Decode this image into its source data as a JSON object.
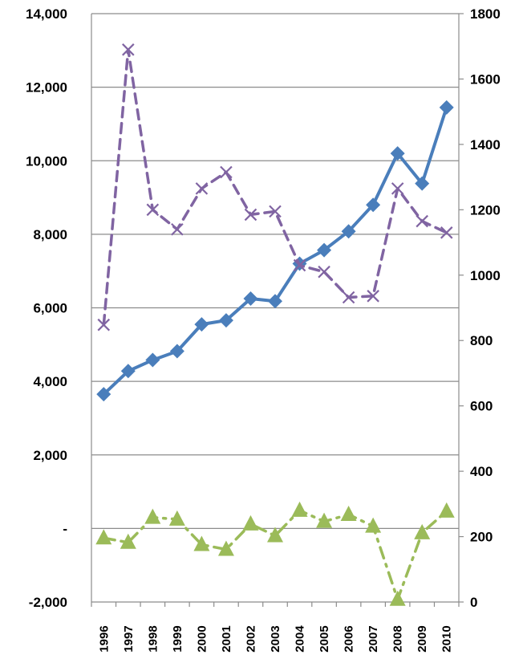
{
  "chart_data": {
    "type": "line",
    "title": "",
    "xlabel": "",
    "ylabel": "",
    "x": [
      "1996",
      "1997",
      "1998",
      "1999",
      "2000",
      "2001",
      "2002",
      "2003",
      "2004",
      "2005",
      "2006",
      "2007",
      "2008",
      "2009",
      "2010"
    ],
    "left_axis": {
      "ylim": [
        -2000,
        14000
      ],
      "ticks": [
        -2000,
        0,
        2000,
        4000,
        6000,
        8000,
        10000,
        12000,
        14000
      ],
      "tick_labels": [
        "-2,000",
        "-",
        "2,000",
        "4,000",
        "6,000",
        "8,000",
        "10,000",
        "12,000",
        "14,000"
      ]
    },
    "right_axis": {
      "ylim": [
        0,
        1800
      ],
      "ticks": [
        0,
        200,
        400,
        600,
        800,
        1000,
        1200,
        1400,
        1600,
        1800
      ],
      "tick_labels": [
        "0",
        "200",
        "400",
        "600",
        "800",
        "1000",
        "1200",
        "1400",
        "1600",
        "1800"
      ]
    },
    "grid": true,
    "legend": "none",
    "series": [
      {
        "axis": "left",
        "color": "#4a7ebb",
        "marker": "diamond",
        "line_style": "solid",
        "values": [
          3650,
          4280,
          4580,
          4820,
          5550,
          5660,
          6250,
          6180,
          7200,
          7570,
          8080,
          8800,
          10200,
          9380,
          11450
        ]
      },
      {
        "axis": "right",
        "color": "#8064a2",
        "marker": "x",
        "line_style": "dashed",
        "values": [
          848,
          1690,
          1200,
          1140,
          1265,
          1315,
          1185,
          1195,
          1030,
          1010,
          932,
          936,
          1265,
          1165,
          1130
        ]
      },
      {
        "axis": "left",
        "color": "#9bbb59",
        "marker": "triangle",
        "line_style": "dashdot",
        "values": [
          -260,
          -380,
          300,
          250,
          -440,
          -570,
          120,
          -200,
          490,
          190,
          380,
          60,
          -1930,
          -120,
          470
        ]
      }
    ]
  }
}
